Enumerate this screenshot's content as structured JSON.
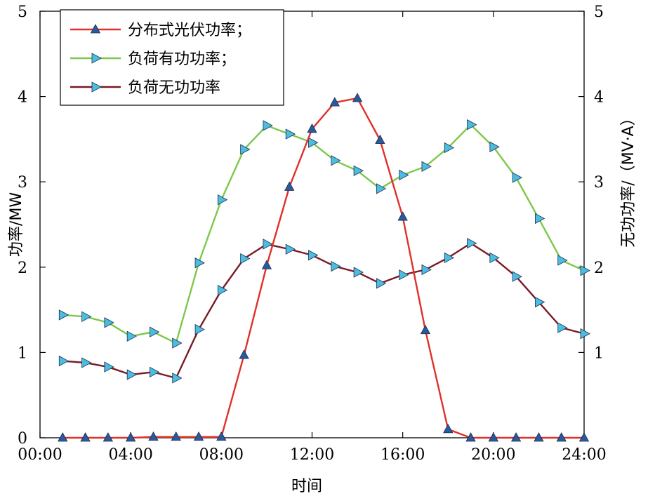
{
  "chart_data": {
    "type": "line",
    "x": [
      "01:00",
      "02:00",
      "03:00",
      "04:00",
      "05:00",
      "06:00",
      "07:00",
      "08:00",
      "09:00",
      "10:00",
      "11:00",
      "12:00",
      "13:00",
      "14:00",
      "15:00",
      "16:00",
      "17:00",
      "18:00",
      "19:00",
      "20:00",
      "21:00",
      "22:00",
      "23:00",
      "24:00"
    ],
    "x_ticks": [
      "00:00",
      "04:00",
      "08:00",
      "12:00",
      "16:00",
      "20:00",
      "24:00"
    ],
    "xlim": [
      0,
      24
    ],
    "xlabel": "时间",
    "ylabel_left": "功率/MW",
    "ylabel_right": "无功功率/（MV·A）",
    "ylim_left": [
      0,
      5
    ],
    "ylim_right": [
      0,
      5
    ],
    "y_ticks_left": [
      "0",
      "1",
      "2",
      "3",
      "4",
      "5"
    ],
    "y_ticks_right": [
      "1",
      "2",
      "3",
      "4",
      "5"
    ],
    "grid": false,
    "legend_position": "top-left",
    "series": [
      {
        "name": "分布式光伏功率；",
        "legend_label": "分布式光伏功率；",
        "axis": "left",
        "color": "#e0302a",
        "marker": "triangle-up",
        "marker_color": "#2a5a9c",
        "values": [
          0.0,
          0.0,
          0.0,
          0.0,
          0.01,
          0.01,
          0.01,
          0.01,
          0.97,
          2.02,
          2.94,
          3.62,
          3.93,
          3.98,
          3.49,
          2.59,
          1.26,
          0.1,
          0.0,
          0.0,
          0.0,
          0.0,
          0.0,
          0.0
        ]
      },
      {
        "name": "负荷有功功率；",
        "legend_label": "负荷有功功率；",
        "axis": "left",
        "color": "#7cc84a",
        "marker": "triangle-right",
        "marker_color": "#4cbce0",
        "values": [
          1.44,
          1.42,
          1.35,
          1.19,
          1.24,
          1.11,
          2.05,
          2.79,
          3.38,
          3.66,
          3.56,
          3.46,
          3.25,
          3.13,
          2.92,
          3.08,
          3.18,
          3.4,
          3.67,
          3.41,
          3.05,
          2.57,
          2.08,
          1.96
        ]
      },
      {
        "name": "负荷无功功率",
        "legend_label": "负荷无功功率",
        "axis": "right",
        "color": "#7a1a26",
        "marker": "triangle-right",
        "marker_color": "#4cbce0",
        "values": [
          0.9,
          0.88,
          0.83,
          0.74,
          0.77,
          0.7,
          1.27,
          1.73,
          2.1,
          2.27,
          2.21,
          2.14,
          2.01,
          1.94,
          1.81,
          1.91,
          1.97,
          2.11,
          2.28,
          2.11,
          1.89,
          1.59,
          1.29,
          1.22
        ]
      }
    ]
  }
}
